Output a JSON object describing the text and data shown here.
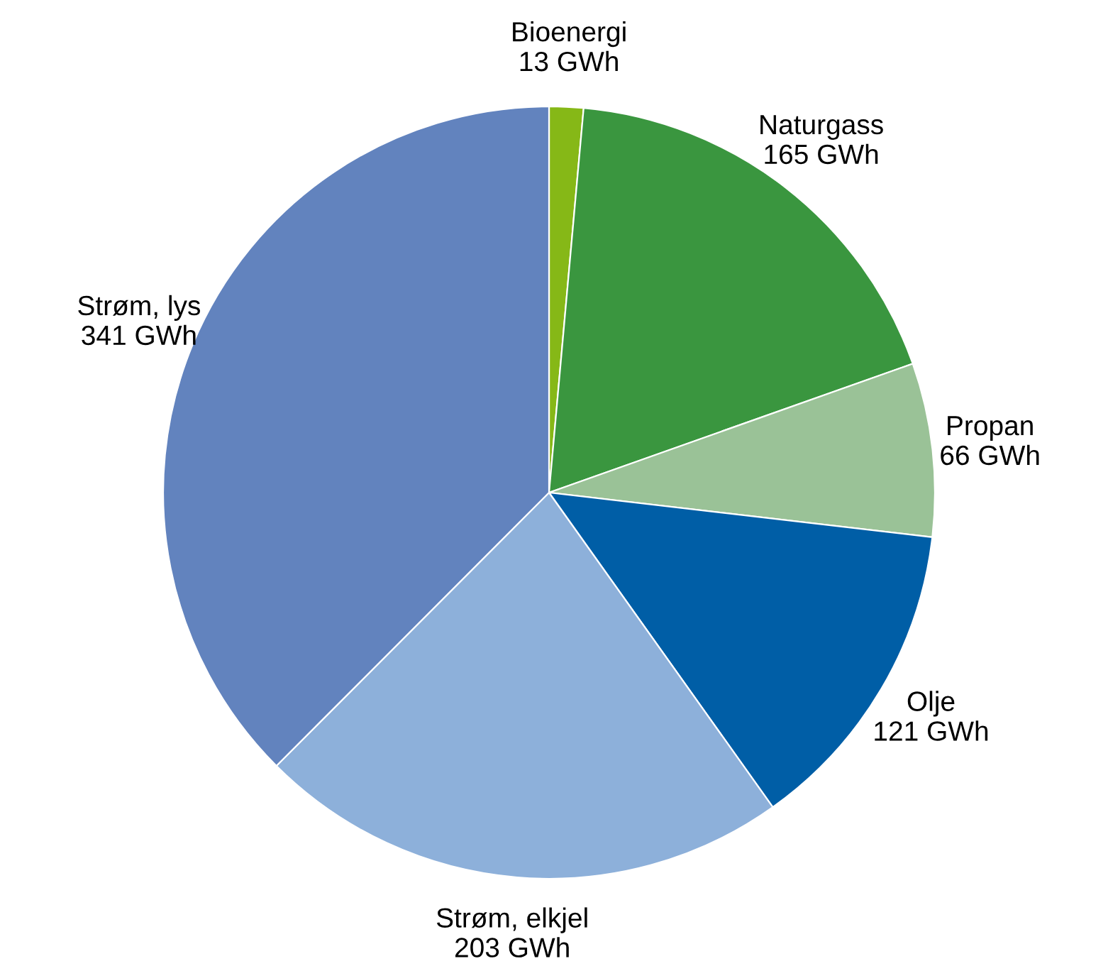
{
  "chart_data": {
    "type": "pie",
    "categories": [
      "Bioenergi",
      "Naturgass",
      "Propan",
      "Olje",
      "Strøm, elkjel",
      "Strøm, lys"
    ],
    "values": [
      13,
      165,
      66,
      121,
      203,
      341
    ],
    "value_labels": [
      "13 GWh",
      "165 GWh",
      "66 GWh",
      "121 GWh",
      "203 GWh",
      "341 GWh"
    ],
    "colors": [
      "#86b817",
      "#3a963f",
      "#9ac297",
      "#005ea6",
      "#8db0da",
      "#6283be"
    ]
  }
}
